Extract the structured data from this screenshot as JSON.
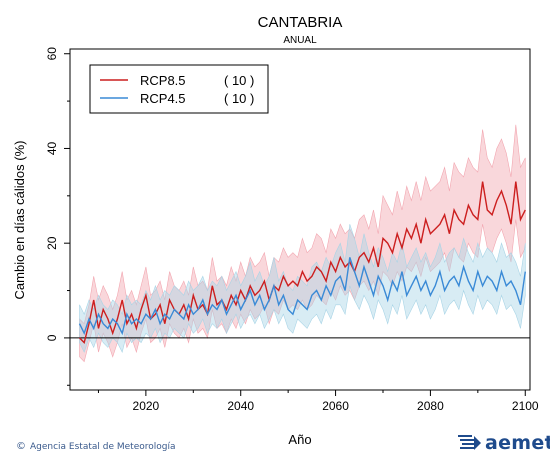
{
  "chart_data": {
    "type": "line",
    "title": "CANTABRIA",
    "subtitle": "ANUAL",
    "xlabel": "Año",
    "ylabel": "Cambio en días cálidos (%)",
    "xlim": [
      2004,
      2101
    ],
    "ylim": [
      -11,
      61
    ],
    "xticks": [
      2020,
      2040,
      2060,
      2080,
      2100
    ],
    "yticks": [
      0,
      20,
      40,
      60
    ],
    "zero_line": true,
    "grid": false,
    "legend_position": "top-left",
    "x": [
      2006,
      2007,
      2008,
      2009,
      2010,
      2011,
      2012,
      2013,
      2014,
      2015,
      2016,
      2017,
      2018,
      2019,
      2020,
      2021,
      2022,
      2023,
      2024,
      2025,
      2026,
      2027,
      2028,
      2029,
      2030,
      2031,
      2032,
      2033,
      2034,
      2035,
      2036,
      2037,
      2038,
      2039,
      2040,
      2041,
      2042,
      2043,
      2044,
      2045,
      2046,
      2047,
      2048,
      2049,
      2050,
      2051,
      2052,
      2053,
      2054,
      2055,
      2056,
      2057,
      2058,
      2059,
      2060,
      2061,
      2062,
      2063,
      2064,
      2065,
      2066,
      2067,
      2068,
      2069,
      2070,
      2071,
      2072,
      2073,
      2074,
      2075,
      2076,
      2077,
      2078,
      2079,
      2080,
      2081,
      2082,
      2083,
      2084,
      2085,
      2086,
      2087,
      2088,
      2089,
      2090,
      2091,
      2092,
      2093,
      2094,
      2095,
      2096,
      2097,
      2098,
      2099,
      2100
    ],
    "series": [
      {
        "name": "RCP8.5",
        "count": "( 10 )",
        "color": "#cc1f1f",
        "band_color": "#f2a6b0",
        "values": [
          0,
          -1,
          3,
          8,
          2,
          6,
          4,
          1,
          4,
          8,
          3,
          5,
          2,
          6,
          9,
          4,
          5,
          7,
          3,
          8,
          6,
          5,
          7,
          4,
          9,
          6,
          7,
          5,
          11,
          7,
          8,
          6,
          9,
          7,
          10,
          8,
          11,
          9,
          10,
          12,
          8,
          11,
          10,
          13,
          11,
          12,
          11,
          14,
          12,
          13,
          15,
          14,
          12,
          16,
          14,
          17,
          15,
          16,
          14,
          17,
          18,
          16,
          19,
          15,
          21,
          20,
          18,
          22,
          19,
          23,
          21,
          24,
          20,
          25,
          22,
          23,
          24,
          26,
          22,
          27,
          25,
          24,
          28,
          26,
          25,
          33,
          27,
          26,
          29,
          31,
          28,
          24,
          33,
          25,
          27
        ],
        "upper": [
          4,
          3,
          7,
          13,
          8,
          11,
          9,
          6,
          9,
          14,
          8,
          10,
          7,
          11,
          15,
          9,
          10,
          12,
          8,
          14,
          11,
          10,
          12,
          9,
          15,
          11,
          12,
          10,
          17,
          12,
          13,
          11,
          15,
          12,
          16,
          13,
          17,
          15,
          16,
          18,
          13,
          17,
          16,
          19,
          17,
          18,
          17,
          21,
          18,
          19,
          22,
          21,
          18,
          23,
          21,
          24,
          22,
          23,
          21,
          25,
          26,
          23,
          27,
          22,
          30,
          28,
          26,
          31,
          27,
          32,
          29,
          33,
          29,
          34,
          31,
          32,
          33,
          36,
          31,
          37,
          35,
          34,
          38,
          36,
          35,
          44,
          38,
          36,
          40,
          42,
          39,
          34,
          45,
          36,
          38
        ],
        "lower": [
          -4,
          -5,
          -1,
          3,
          -3,
          1,
          -1,
          -4,
          -1,
          3,
          -2,
          0,
          -3,
          1,
          4,
          -1,
          0,
          2,
          -2,
          3,
          1,
          0,
          2,
          -1,
          4,
          1,
          2,
          0,
          6,
          2,
          3,
          1,
          4,
          2,
          5,
          3,
          6,
          4,
          5,
          7,
          3,
          6,
          5,
          8,
          6,
          7,
          6,
          8,
          6,
          7,
          9,
          8,
          7,
          10,
          8,
          11,
          9,
          10,
          8,
          11,
          12,
          10,
          12,
          9,
          14,
          13,
          11,
          14,
          12,
          15,
          14,
          16,
          13,
          17,
          14,
          15,
          16,
          18,
          14,
          19,
          17,
          16,
          20,
          18,
          17,
          24,
          19,
          18,
          21,
          23,
          20,
          16,
          25,
          17,
          19
        ]
      },
      {
        "name": "RCP4.5",
        "count": "( 10 )",
        "color": "#3a8ad6",
        "band_color": "#a8d4e6",
        "values": [
          3,
          1,
          4,
          2,
          5,
          3,
          2,
          4,
          3,
          1,
          5,
          3,
          4,
          3,
          5,
          4,
          6,
          3,
          5,
          4,
          6,
          5,
          4,
          7,
          5,
          6,
          8,
          5,
          7,
          6,
          8,
          5,
          7,
          9,
          6,
          8,
          10,
          7,
          9,
          6,
          8,
          11,
          7,
          9,
          6,
          5,
          8,
          7,
          6,
          9,
          10,
          8,
          11,
          9,
          12,
          13,
          10,
          17,
          14,
          11,
          15,
          12,
          9,
          13,
          11,
          8,
          12,
          10,
          14,
          9,
          11,
          13,
          10,
          12,
          9,
          11,
          14,
          10,
          12,
          13,
          11,
          15,
          12,
          10,
          14,
          11,
          13,
          12,
          10,
          14,
          11,
          12,
          10,
          7,
          14
        ],
        "upper": [
          7,
          5,
          8,
          6,
          9,
          7,
          6,
          8,
          7,
          5,
          9,
          7,
          8,
          7,
          10,
          8,
          11,
          8,
          10,
          9,
          11,
          10,
          9,
          12,
          10,
          11,
          13,
          10,
          12,
          11,
          13,
          10,
          12,
          14,
          11,
          13,
          16,
          12,
          14,
          11,
          13,
          17,
          12,
          14,
          11,
          10,
          13,
          12,
          11,
          15,
          16,
          14,
          17,
          15,
          18,
          20,
          16,
          24,
          21,
          17,
          22,
          18,
          15,
          19,
          17,
          14,
          18,
          16,
          20,
          15,
          17,
          19,
          16,
          18,
          15,
          17,
          20,
          16,
          18,
          19,
          17,
          21,
          18,
          16,
          20,
          17,
          19,
          18,
          16,
          20,
          17,
          18,
          16,
          13,
          20
        ],
        "lower": [
          -1,
          -3,
          0,
          -2,
          1,
          -1,
          -2,
          0,
          -1,
          -3,
          1,
          -1,
          0,
          -1,
          1,
          0,
          2,
          -1,
          1,
          0,
          2,
          1,
          0,
          3,
          1,
          2,
          4,
          1,
          3,
          2,
          4,
          1,
          3,
          5,
          2,
          4,
          5,
          3,
          5,
          2,
          4,
          6,
          3,
          5,
          2,
          1,
          4,
          3,
          2,
          4,
          5,
          3,
          6,
          4,
          7,
          7,
          5,
          11,
          8,
          6,
          9,
          7,
          4,
          8,
          6,
          3,
          7,
          5,
          9,
          4,
          6,
          8,
          5,
          7,
          4,
          6,
          9,
          5,
          7,
          8,
          6,
          10,
          7,
          5,
          9,
          6,
          8,
          7,
          5,
          9,
          6,
          7,
          5,
          2,
          9
        ]
      }
    ]
  },
  "footer": {
    "copyright_symbol": "©",
    "credit": "Agencia Estatal de Meteorología",
    "brand": "aemet"
  }
}
